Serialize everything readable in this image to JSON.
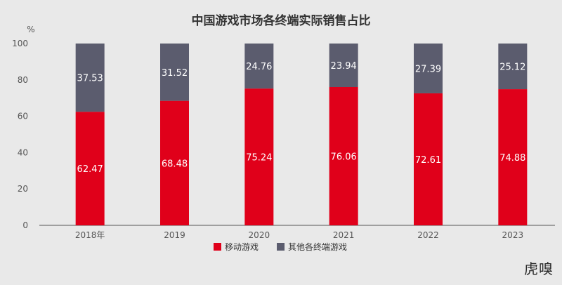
{
  "chart_data": {
    "type": "bar",
    "stacked": true,
    "title": "中国游戏市场各终端实际销售占比",
    "unit_label": "%",
    "categories": [
      "2018年",
      "2019",
      "2020",
      "2021",
      "2022",
      "2023"
    ],
    "series": [
      {
        "name": "移动游戏",
        "color": "#e0001a",
        "values": [
          62.47,
          68.48,
          75.24,
          76.06,
          72.61,
          74.88
        ]
      },
      {
        "name": "其他各终端游戏",
        "color": "#5b5c6e",
        "values": [
          37.53,
          31.52,
          24.76,
          23.94,
          27.39,
          25.12
        ]
      }
    ],
    "ylim": [
      0,
      100
    ],
    "yticks": [
      0,
      20,
      40,
      60,
      80,
      100
    ],
    "legend_position": "bottom",
    "grid": false
  },
  "watermark": "虎嗅"
}
